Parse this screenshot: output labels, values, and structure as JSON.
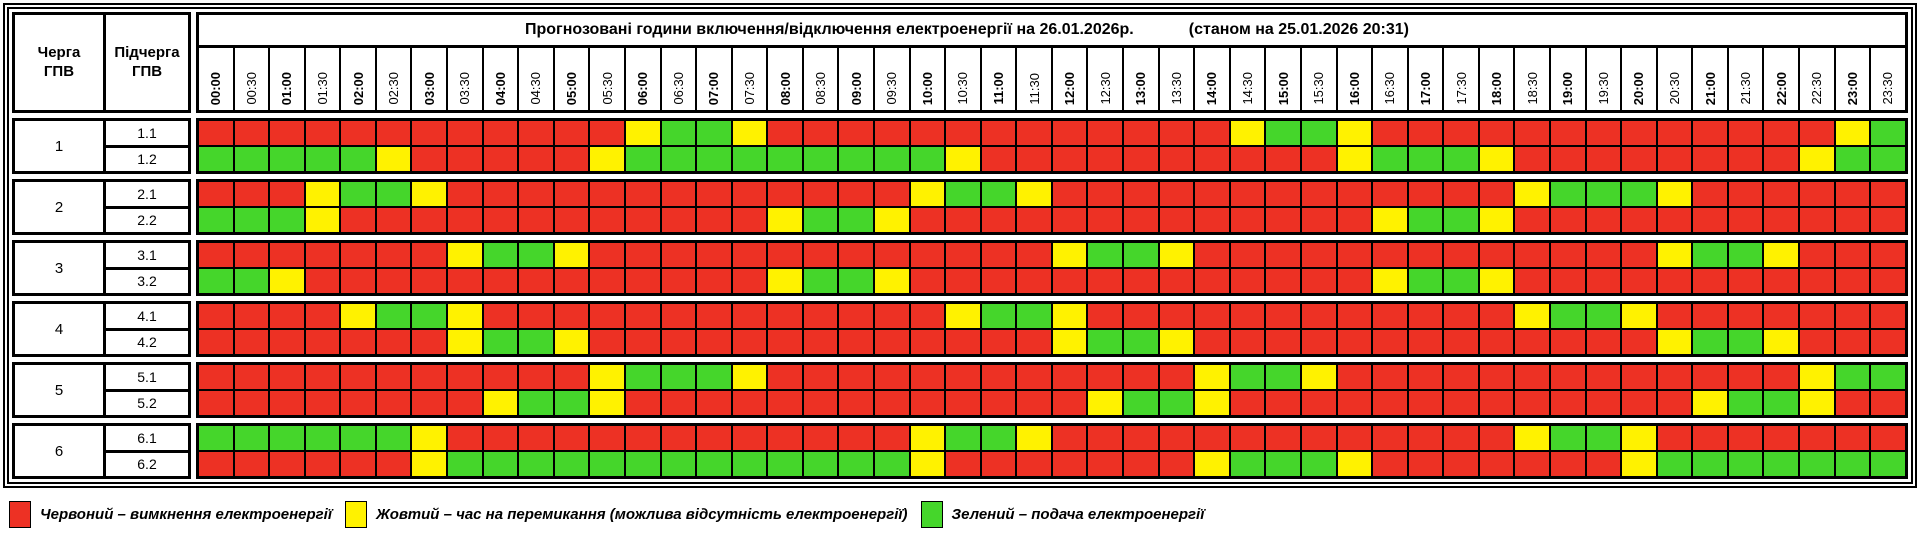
{
  "chart_data": {
    "type": "heatmap",
    "title": "Прогнозовані години включення/відключення електроенергії на 26.01.2026р.",
    "status": "(станом на 25.01.2026 20:31)",
    "queue_header": "Черга\nГПВ",
    "subqueue_header": "Підчерга\nГПВ",
    "x_labels": [
      "00:00",
      "00:30",
      "01:00",
      "01:30",
      "02:00",
      "02:30",
      "03:00",
      "03:30",
      "04:00",
      "04:30",
      "05:00",
      "05:30",
      "06:00",
      "06:30",
      "07:00",
      "07:30",
      "08:00",
      "08:30",
      "09:00",
      "09:30",
      "10:00",
      "10:30",
      "11:00",
      "11:30",
      "12:00",
      "12:30",
      "13:00",
      "13:30",
      "14:00",
      "14:30",
      "15:00",
      "15:30",
      "16:00",
      "16:30",
      "17:00",
      "17:30",
      "18:00",
      "18:30",
      "19:00",
      "19:30",
      "20:00",
      "20:30",
      "21:00",
      "21:30",
      "22:00",
      "22:30",
      "23:00",
      "23:30"
    ],
    "colors": {
      "R": "#ED3124",
      "Y": "#FFF200",
      "G": "#45D62B"
    },
    "groups": [
      {
        "queue": "1",
        "rows": [
          {
            "subqueue": "1.1",
            "cells": "RRRRRRRRRRRRYGGYRRRRRRRRRRRRRYGGYRRRRRRRRRRRRRYG"
          },
          {
            "subqueue": "1.2",
            "cells": "GGGGGYRRRRRYGGGGGGGGGYRRRRRRRRRRYGGGYRRRRRRRRYGG"
          }
        ]
      },
      {
        "queue": "2",
        "rows": [
          {
            "subqueue": "2.1",
            "cells": "RRRYGGYRRRRRRRRRRRRRYGGYRRRRRRRRRRRRRYGGGYRRRRRR"
          },
          {
            "subqueue": "2.2",
            "cells": "GGGYRRRRRRRRRRRRYGGYRRRRRRRRRRRRRYGGYRRRRRRRRRRR"
          }
        ]
      },
      {
        "queue": "3",
        "rows": [
          {
            "subqueue": "3.1",
            "cells": "RRRRRRRYGGYRRRRRRRRRRRRRYGGYRRRRRRRRRRRRRYGGYRRR"
          },
          {
            "subqueue": "3.2",
            "cells": "GGYRRRRRRRRRRRRRYGGYRRRRRRRRRRRRRYGGYRRRRRRRRRRR"
          }
        ]
      },
      {
        "queue": "4",
        "rows": [
          {
            "subqueue": "4.1",
            "cells": "RRRRYGGYRRRRRRRRRRRRRYGGYRRRRRRRRRRRRYGGYRRRRRRR"
          },
          {
            "subqueue": "4.2",
            "cells": "RRRRRRRYGGYRRRRRRRRRRRRRYGGYRRRRRRRRRRRRRYGGYRRR"
          }
        ]
      },
      {
        "queue": "5",
        "rows": [
          {
            "subqueue": "5.1",
            "cells": "RRRRRRRRRRRYGGGYRRRRRRRRRRRRYGGYRRRRRRRRRRRRRYGG"
          },
          {
            "subqueue": "5.2",
            "cells": "RRRRRRRRYGGYRRRRRRRRRRRRRYGGYRRRRRRRRRRRRRYGGYRR"
          }
        ]
      },
      {
        "queue": "6",
        "rows": [
          {
            "subqueue": "6.1",
            "cells": "GGGGGGYRRRRRRRRRRRRRYGGYRRRRRRRRRRRRRYGGYRRRRRRR"
          },
          {
            "subqueue": "6.2",
            "cells": "RRRRRRYGGGGGGGGGGGGGYRRRRRRRYGGGYRRRRRRRYGGGGGGG"
          }
        ]
      }
    ],
    "legend": [
      {
        "key": "R",
        "label": "Червоний – вимкнення електроенергії"
      },
      {
        "key": "Y",
        "label": "Жовтий – час на перемикання (можлива відсутність електроенергії)"
      },
      {
        "key": "G",
        "label": "Зелений – подача електроенергії"
      }
    ]
  }
}
